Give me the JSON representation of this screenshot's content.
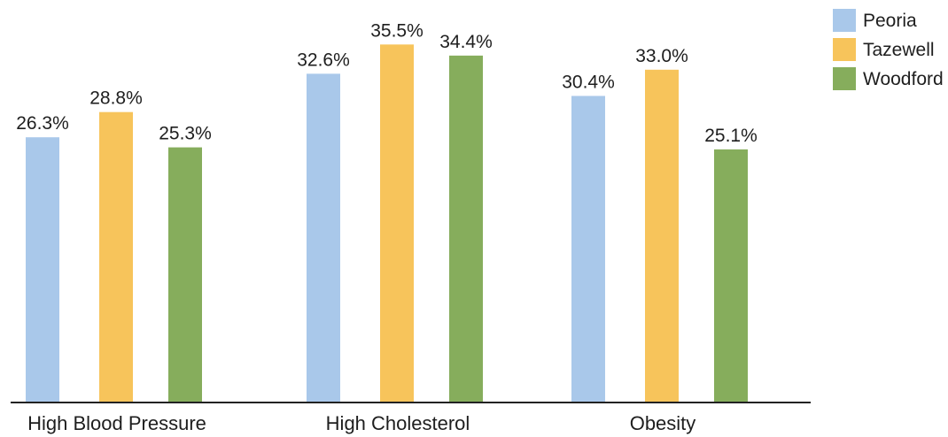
{
  "chart_data": {
    "type": "bar",
    "categories": [
      "High Blood Pressure",
      "High Cholesterol",
      "Obesity"
    ],
    "series": [
      {
        "name": "Peoria",
        "color": "#a9c8ea",
        "values": [
          26.3,
          32.6,
          30.4
        ],
        "labels": [
          "26.3%",
          "32.6%",
          "30.4%"
        ]
      },
      {
        "name": "Tazewell",
        "color": "#f7c45b",
        "values": [
          28.8,
          35.5,
          33.0
        ],
        "labels": [
          "28.8%",
          "35.5%",
          "33.0%"
        ]
      },
      {
        "name": "Woodford",
        "color": "#86ad5c",
        "values": [
          25.3,
          34.4,
          25.1
        ],
        "labels": [
          "25.3%",
          "34.4%",
          "25.1%"
        ]
      }
    ],
    "ylim": [
      0,
      40
    ],
    "grid": false,
    "legend_position": "top-right",
    "xlabel": "",
    "ylabel": ""
  }
}
